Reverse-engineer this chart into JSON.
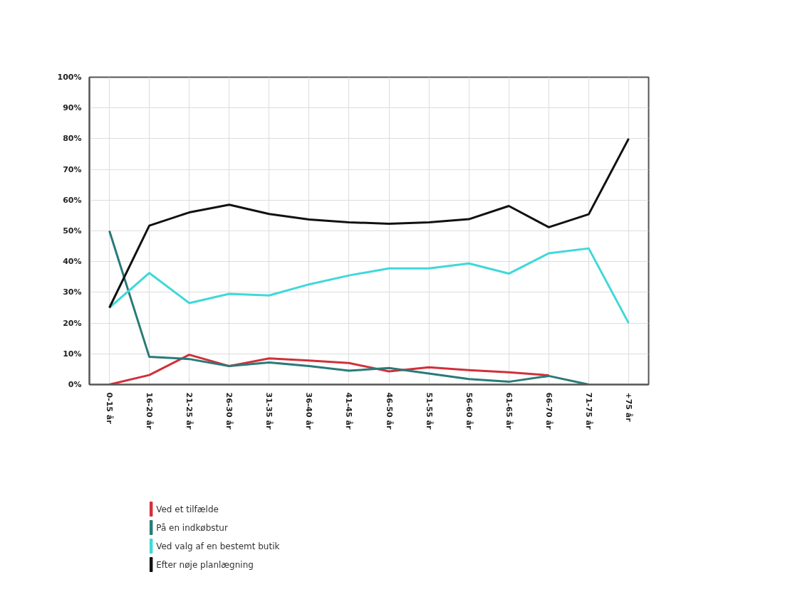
{
  "chart_data": {
    "type": "line",
    "categories": [
      "0-15 år",
      "16-20 år",
      "21-25 år",
      "26-30 år",
      "31-35 år",
      "36-40 år",
      "41-45 år",
      "46-50 år",
      "51-55 år",
      "56-60 år",
      "61-65 år",
      "66-70 år",
      "71-75 år",
      "+75 år"
    ],
    "series": [
      {
        "name": "Ved et tilfælde",
        "color": "#d0303a",
        "values": [
          0,
          3.1,
          9.7,
          6,
          8.5,
          7.8,
          7,
          4.3,
          5.6,
          4.7,
          4,
          3,
          null,
          null
        ]
      },
      {
        "name": "På en indkøbstur",
        "color": "#2a7a78",
        "values": [
          50,
          9,
          8.3,
          6,
          7.2,
          6,
          4.5,
          5.4,
          3.6,
          1.8,
          0.9,
          2.8,
          0,
          null
        ]
      },
      {
        "name": "Ved valg af en bestemt butik",
        "color": "#40d8d8",
        "values": [
          25,
          36.3,
          26.5,
          29.5,
          29,
          32.6,
          35.5,
          37.8,
          37.8,
          39.4,
          36.1,
          42.7,
          44.3,
          20
        ]
      },
      {
        "name": "Efter nøje planlægning",
        "color": "#111111",
        "values": [
          25,
          51.7,
          56,
          58.5,
          55.5,
          53.7,
          52.8,
          52.3,
          52.8,
          53.8,
          58.1,
          51.2,
          55.4,
          80
        ]
      }
    ],
    "ylim": [
      0,
      100
    ],
    "yticks": [
      {
        "value": 0,
        "label": "0%"
      },
      {
        "value": 10,
        "label": "10%"
      },
      {
        "value": 20,
        "label": "20%"
      },
      {
        "value": 30,
        "label": "30%"
      },
      {
        "value": 40,
        "label": "40%"
      },
      {
        "value": 50,
        "label": "50%"
      },
      {
        "value": 60,
        "label": "60%"
      },
      {
        "value": 70,
        "label": "70%"
      },
      {
        "value": 80,
        "label": "80%"
      },
      {
        "value": 90,
        "label": "90%"
      },
      {
        "value": 100,
        "label": "100%"
      }
    ],
    "grid": true,
    "legend": "bottom",
    "marker": "none",
    "line_style": "solid"
  }
}
